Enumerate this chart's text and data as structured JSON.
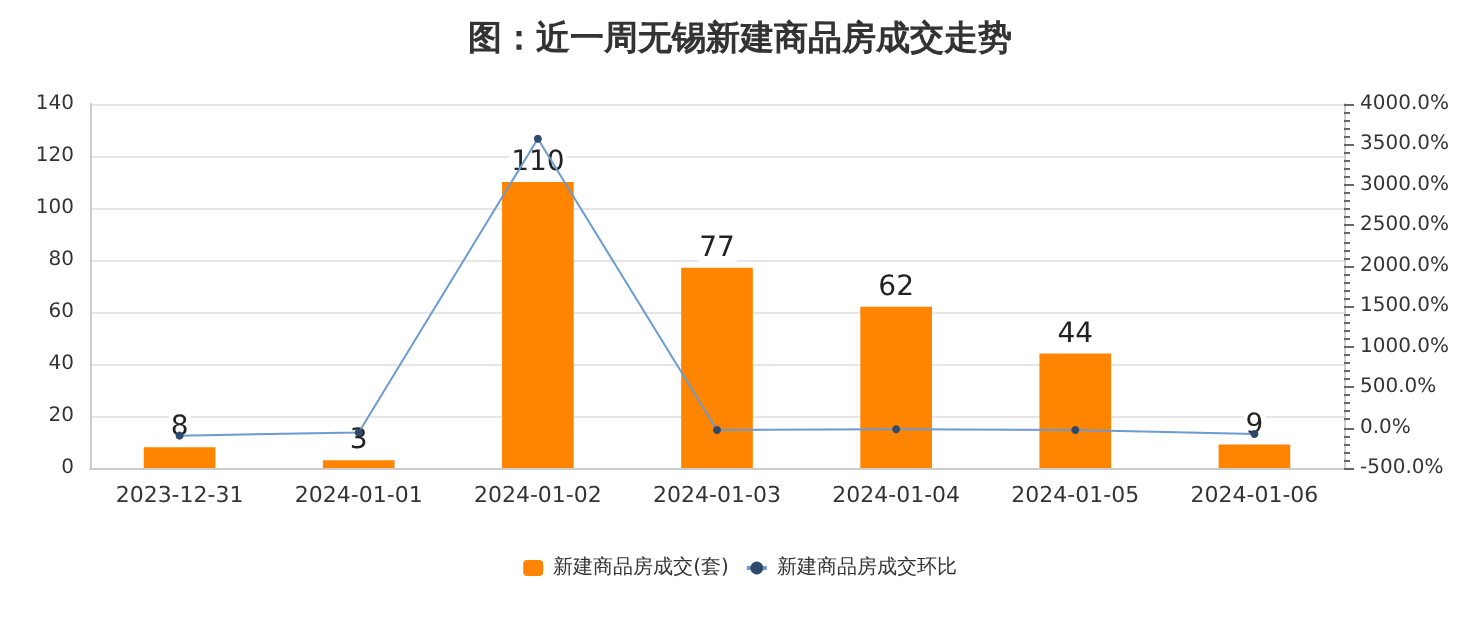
{
  "chart_data": {
    "type": "bar",
    "title": "图：近一周无锡新建商品房成交走势",
    "categories": [
      "2023-12-31",
      "2024-01-01",
      "2024-01-02",
      "2024-01-03",
      "2024-01-04",
      "2024-01-05",
      "2024-01-06"
    ],
    "series": [
      {
        "name": "新建商品房成交(套)",
        "color": "#ff8400",
        "values": [
          8,
          3,
          110,
          77,
          62,
          44,
          9
        ],
        "data_labels": true
      },
      {
        "name": "新建商品房成交环比",
        "type": "line",
        "axis": "y2",
        "color": "#6b9bd1",
        "marker": "circle",
        "values": [
          -100,
          -60,
          3570,
          -30,
          -20,
          -30,
          -80
        ]
      }
    ],
    "ylim": [
      0,
      140
    ],
    "yticks": [
      0,
      20,
      40,
      60,
      80,
      100,
      120,
      140
    ],
    "y2lim": [
      -500,
      4000
    ],
    "y2ticks": [
      {
        "value": -500,
        "label": "-500.0%"
      },
      {
        "value": 0,
        "label": "0.0%"
      },
      {
        "value": 500,
        "label": "500.0%"
      },
      {
        "value": 1000,
        "label": "1000.0%"
      },
      {
        "value": 1500,
        "label": "1500.0%"
      },
      {
        "value": 2000,
        "label": "2000.0%"
      },
      {
        "value": 2500,
        "label": "2500.0%"
      },
      {
        "value": 3000,
        "label": "3000.0%"
      },
      {
        "value": 3500,
        "label": "3500.0%"
      },
      {
        "value": 4000,
        "label": "4000.0%"
      }
    ],
    "grid": "y",
    "legend": "bottom"
  }
}
